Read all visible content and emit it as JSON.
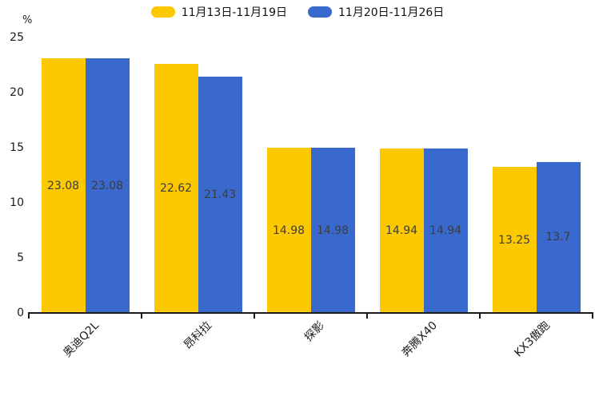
{
  "chart_data": {
    "type": "bar",
    "categories": [
      "奥迪Q2L",
      "昂科拉",
      "探影",
      "奔腾X40",
      "KX3傲跑"
    ],
    "series": [
      {
        "name": "11月13日-11月19日",
        "color": "#FCC800",
        "values": [
          23.08,
          22.62,
          14.98,
          14.94,
          13.25
        ]
      },
      {
        "name": "11月20日-11月26日",
        "color": "#3A69CD",
        "values": [
          23.08,
          21.43,
          14.98,
          14.94,
          13.7
        ]
      }
    ],
    "title": "",
    "xlabel": "",
    "ylabel": "%",
    "ylim": [
      0,
      25
    ],
    "yticks": [
      0,
      5,
      10,
      15,
      20,
      25
    ],
    "legend_position": "top",
    "grid": false,
    "value_labels": true
  },
  "colors": {
    "background": "#FFFFFF",
    "axis": "#1A1A1A",
    "tick_label_color": "#1A1A1A",
    "value_label_color": "#3D3D3D"
  }
}
